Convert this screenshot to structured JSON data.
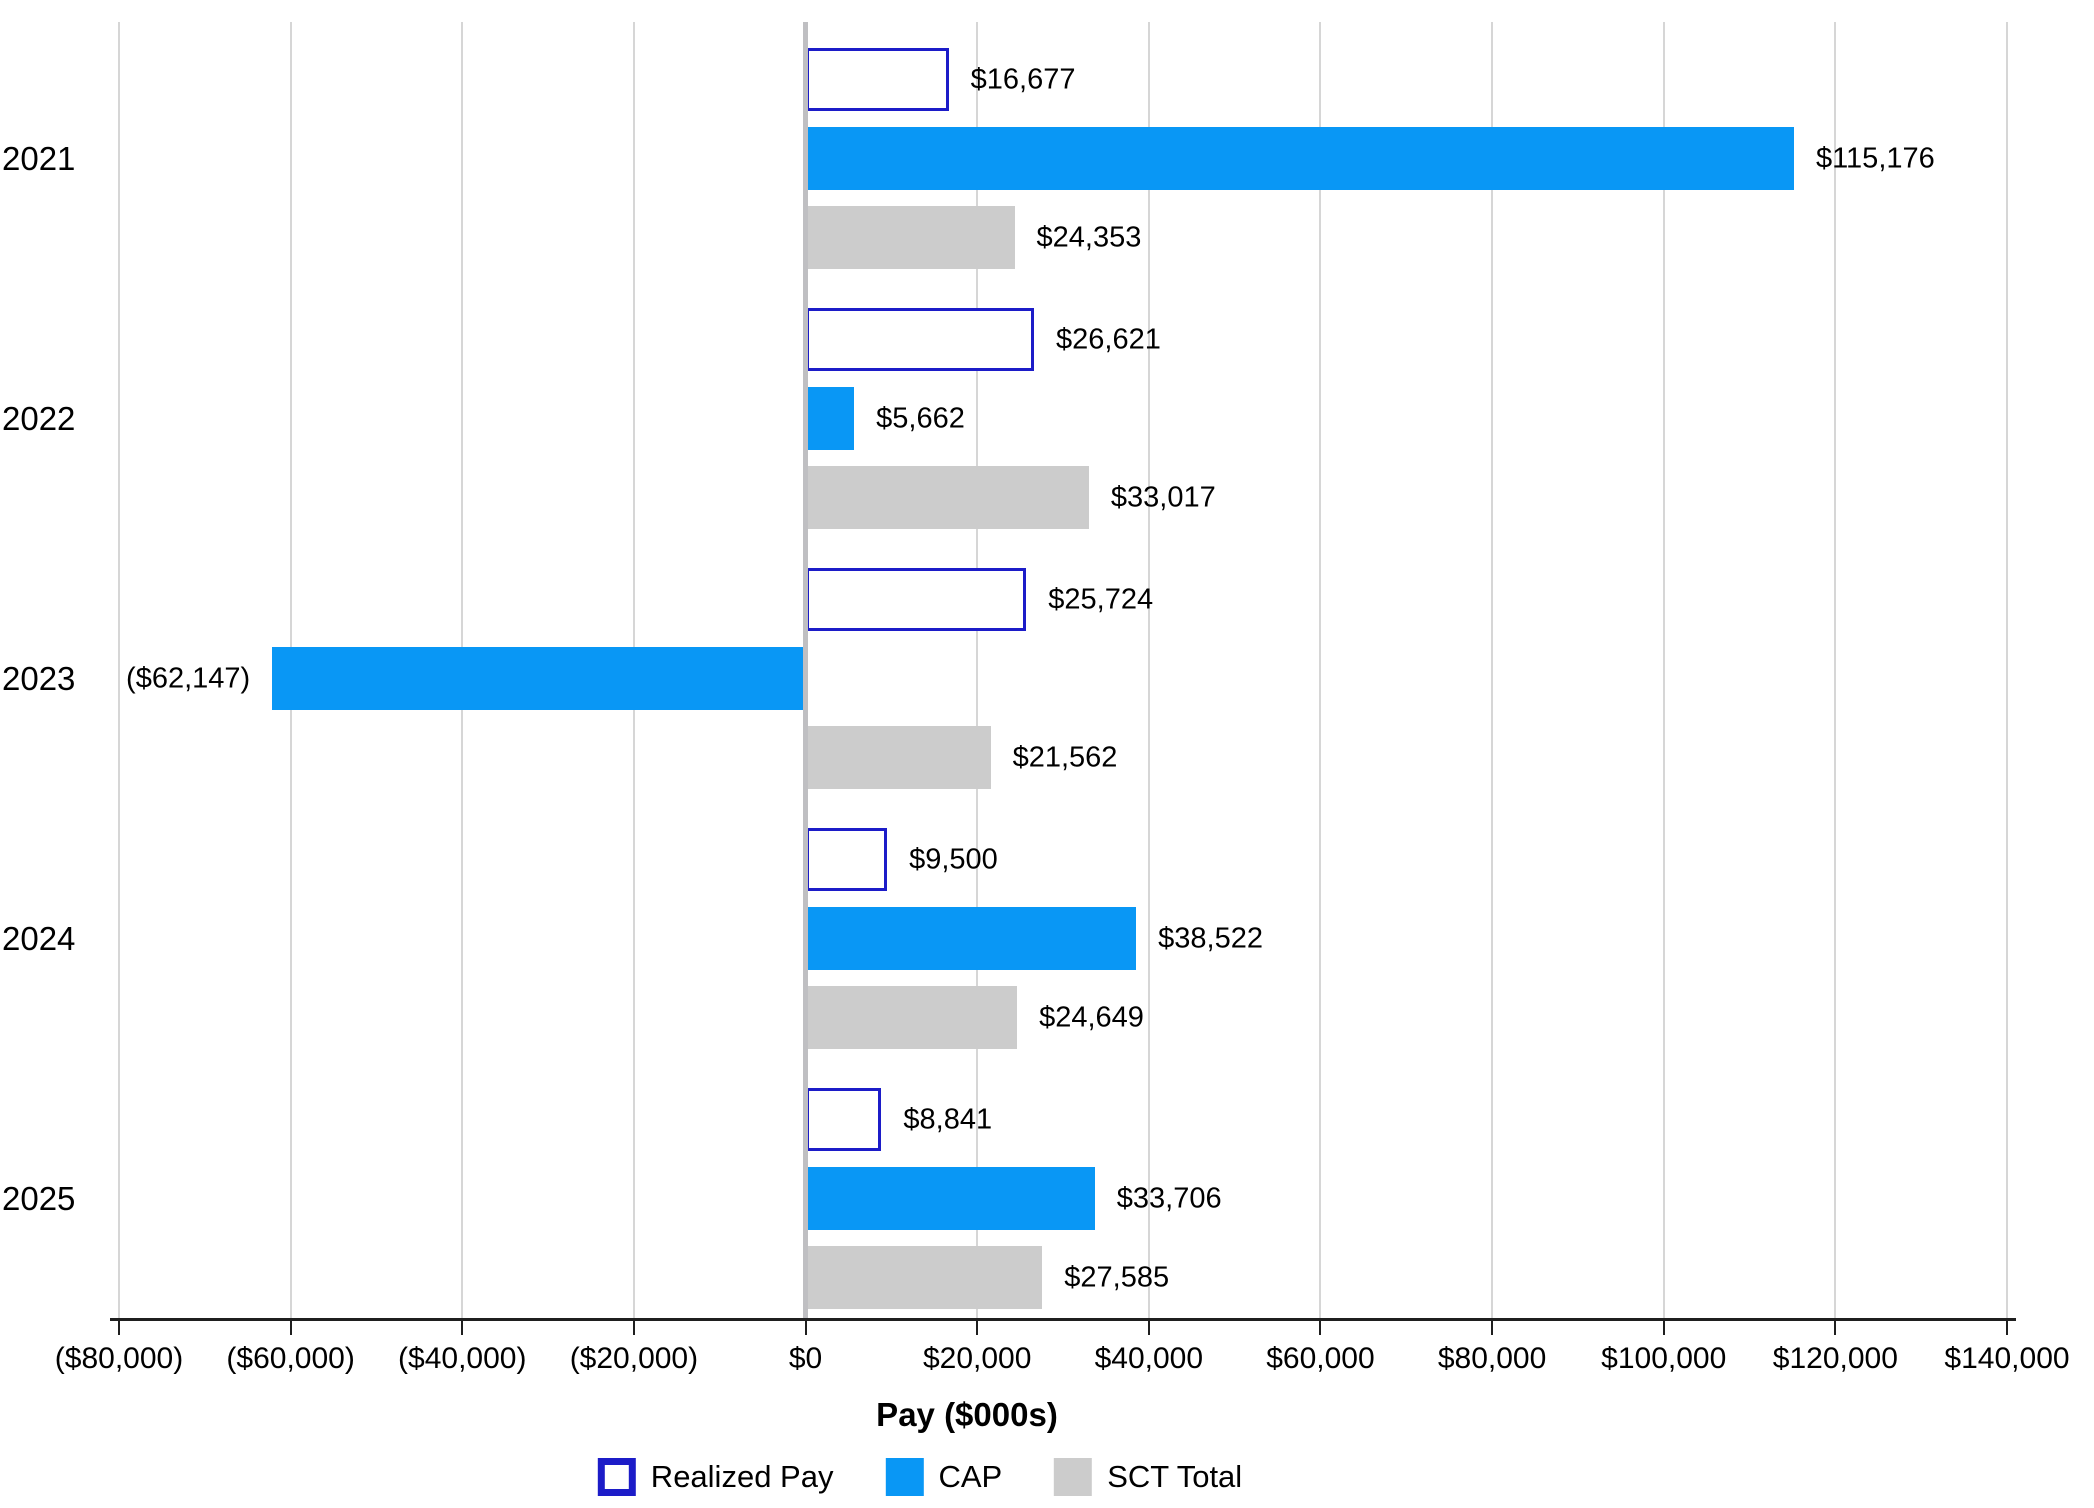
{
  "chart_data": {
    "type": "bar",
    "orientation": "horizontal",
    "xlabel": "Pay ($000s)",
    "categories": [
      "2021",
      "2022",
      "2023",
      "2024",
      "2025"
    ],
    "series": [
      {
        "name": "Realized Pay",
        "values": [
          16677,
          26621,
          25724,
          9500,
          8841
        ],
        "labels": [
          "$16,677",
          "$26,621",
          "$25,724",
          "$9,500",
          "$8,841"
        ],
        "fill": "#FFFFFF",
        "border": "#1C1CC8"
      },
      {
        "name": "CAP",
        "values": [
          115176,
          5662,
          -62147,
          38522,
          33706
        ],
        "labels": [
          "$115,176",
          "$5,662",
          "($62,147)",
          "$38,522",
          "$33,706"
        ],
        "fill": "#0997F5"
      },
      {
        "name": "SCT Total",
        "values": [
          24353,
          33017,
          21562,
          24649,
          27585
        ],
        "labels": [
          "$24,353",
          "$33,017",
          "$21,562",
          "$24,649",
          "$27,585"
        ],
        "fill": "#CCCCCC"
      }
    ],
    "x_axis": {
      "min": -80000,
      "max": 140000,
      "step": 20000,
      "tick_labels": [
        "($80,000)",
        "($60,000)",
        "($40,000)",
        "($20,000)",
        "$0",
        "$20,000",
        "$40,000",
        "$60,000",
        "$80,000",
        "$100,000",
        "$120,000",
        "$140,000"
      ]
    },
    "legend": [
      "Realized Pay",
      "CAP",
      "SCT Total"
    ],
    "grid": true,
    "colors": {
      "realized_pay_border": "#1C1CC8",
      "cap_blue": "#0997F5",
      "sct_gray": "#CCCCCC",
      "gridline": "#D6D6D6",
      "zero_line": "#BFBFC2",
      "axis": "#1F1F1F"
    }
  }
}
